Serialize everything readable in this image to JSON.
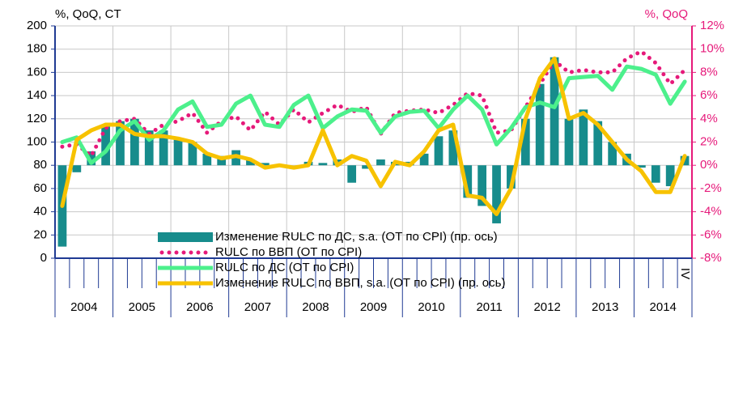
{
  "chart_data": {
    "type": "combo",
    "ylabel": "%, QoQ, CT",
    "y2label": "%, QoQ",
    "categories": [
      null,
      null,
      null,
      null,
      null,
      null,
      null,
      null,
      null,
      null,
      null,
      null,
      null,
      null,
      null,
      null,
      null,
      null,
      null,
      null,
      null,
      null,
      null,
      null,
      null,
      null,
      null,
      null,
      null,
      null,
      null,
      null,
      null,
      null,
      null,
      null,
      null,
      null,
      null,
      null,
      null,
      null,
      null,
      "IV"
    ],
    "year_labels": [
      "2004",
      "2005",
      "2006",
      "2007",
      "2008",
      "2009",
      "2010",
      "2011",
      "2012",
      "2013",
      "2014"
    ],
    "ylim": [
      0,
      200
    ],
    "yticks": [
      0,
      20,
      40,
      60,
      80,
      100,
      120,
      140,
      160,
      180,
      200
    ],
    "y2lim": [
      -8,
      12
    ],
    "y2ticks": [
      {
        "value": -8,
        "label": "-8%"
      },
      {
        "value": -6,
        "label": "-6%"
      },
      {
        "value": -4,
        "label": "-4%"
      },
      {
        "value": -2,
        "label": "-2%"
      },
      {
        "value": 0,
        "label": "0%"
      },
      {
        "value": 2,
        "label": "2%"
      },
      {
        "value": 4,
        "label": "4%"
      },
      {
        "value": 6,
        "label": "6%"
      },
      {
        "value": 8,
        "label": "8%"
      },
      {
        "value": 10,
        "label": "10%"
      },
      {
        "value": 12,
        "label": "12%"
      }
    ],
    "grid": true,
    "series": [
      {
        "name": "Изменение RULC по ДС, s.a. (ОТ по CPI) (пр. ось)",
        "type": "bar",
        "axis": "y2",
        "color": "#178c8c",
        "values": [
          -7.0,
          -0.6,
          1.2,
          3.5,
          3.8,
          4.0,
          3.0,
          3.0,
          2.2,
          2.0,
          1.0,
          0.8,
          1.3,
          0.5,
          0.2,
          0.0,
          0.0,
          0.3,
          0.2,
          0.5,
          -1.5,
          -0.3,
          0.5,
          0.3,
          0.3,
          1.0,
          2.5,
          3.0,
          -2.8,
          -3.5,
          -5.0,
          -2.0,
          4.0,
          7.0,
          9.3,
          4.0,
          4.8,
          3.8,
          2.0,
          1.0,
          -0.2,
          -1.5,
          -1.8,
          0.8
        ]
      },
      {
        "name": "RULC по ВВП (ОТ по CPI)",
        "type": "dotted",
        "axis": "y",
        "color": "#e6197a",
        "values": [
          96,
          98,
          88,
          112,
          118,
          120,
          107,
          115,
          118,
          125,
          108,
          118,
          122,
          110,
          126,
          115,
          128,
          117,
          125,
          132,
          126,
          130,
          107,
          125,
          127,
          128,
          125,
          132,
          142,
          140,
          108,
          110,
          130,
          150,
          170,
          160,
          162,
          160,
          160,
          172,
          178,
          168,
          150,
          162
        ]
      },
      {
        "name": "RULC по ДС (ОТ по CPI)",
        "type": "line",
        "axis": "y",
        "color": "#4cf08c",
        "values": [
          100,
          104,
          82,
          92,
          110,
          118,
          102,
          110,
          128,
          135,
          113,
          115,
          133,
          140,
          115,
          113,
          132,
          140,
          112,
          122,
          128,
          127,
          108,
          122,
          126,
          127,
          112,
          128,
          140,
          128,
          98,
          112,
          130,
          134,
          130,
          155,
          156,
          157,
          145,
          165,
          163,
          158,
          133,
          152
        ]
      },
      {
        "name": "Изменение RULC по ВВП, s.a. (ОТ по CPI) (пр. ось)",
        "type": "line",
        "axis": "y2",
        "color": "#f7c200",
        "values": [
          -3.5,
          2.2,
          3.0,
          3.5,
          3.5,
          2.7,
          2.5,
          2.5,
          2.3,
          2.0,
          1.0,
          0.6,
          0.8,
          0.5,
          -0.2,
          0.0,
          -0.2,
          0.0,
          3.0,
          0.0,
          0.8,
          0.4,
          -1.8,
          0.3,
          0.0,
          1.2,
          3.0,
          3.5,
          -2.6,
          -2.8,
          -4.2,
          -2.0,
          4.0,
          7.5,
          9.2,
          4.0,
          4.5,
          3.5,
          2.0,
          0.5,
          -0.5,
          -2.3,
          -2.3,
          0.8
        ]
      }
    ]
  }
}
